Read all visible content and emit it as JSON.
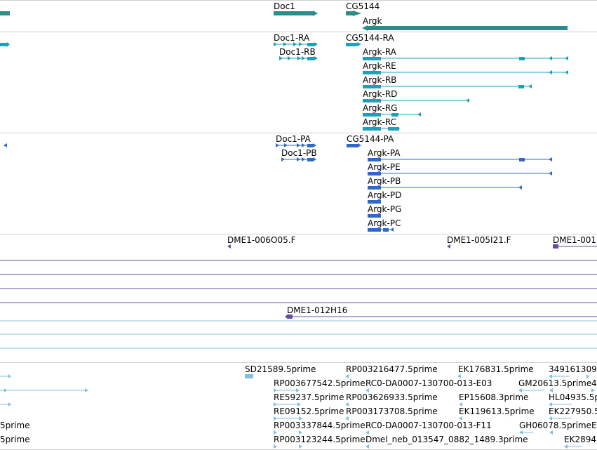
{
  "colors": {
    "gene": "#2e8b8b",
    "transcript": "#1ea0b8",
    "protein": "#2f68c8",
    "clone": "#6a4c9c",
    "est": "#7fbfe0",
    "divider": "#cfcfcf",
    "bg": "#ffffff"
  },
  "genes": {
    "doc1": "Doc1",
    "cg5144": "CG5144",
    "argk": "Argk"
  },
  "transcripts": {
    "doc1_ra": "Doc1-RA",
    "doc1_rb": "Doc1-RB",
    "cg5144_ra": "CG5144-RA",
    "argk_ra": "Argk-RA",
    "argk_re": "Argk-RE",
    "argk_rb": "Argk-RB",
    "argk_rd": "Argk-RD",
    "argk_rg": "Argk-RG",
    "argk_rc": "Argk-RC"
  },
  "proteins": {
    "doc1_pa": "Doc1-PA",
    "doc1_pb": "Doc1-PB",
    "cg5144_pa": "CG5144-PA",
    "argk_pa": "Argk-PA",
    "argk_pe": "Argk-PE",
    "argk_pb": "Argk-PB",
    "argk_pd": "Argk-PD",
    "argk_pg": "Argk-PG",
    "argk_pc": "Argk-PC"
  },
  "clones": {
    "c1": "DME1-006O05.F",
    "c2": "DME1-005I21.F",
    "c3": "DME1-001",
    "c4": "DME1-012H16"
  },
  "ests": {
    "r0a": "SD21589.5prime",
    "r0b": "RP003216477.5prime",
    "r0c": "EK176831.5prime",
    "r0d": "349161309",
    "r1a": "RP003677542.5prime",
    "r1b": "RC0-DA0007-130700-013-E03",
    "r1c": "GM20613.5prime",
    "r1d": "4",
    "r2a": "RE59237.5prime",
    "r2b": "RP003626933.5prime",
    "r2c": "EP15608.3prime",
    "r2d": "HL04935.5prime",
    "r3a": "RE09152.5prime",
    "r3b": "RP003173708.5prime",
    "r3c": "EK119613.5prime",
    "r3d": "EK227950.5",
    "r4a": "5prime",
    "r4b": "RP003337844.5prime",
    "r4c": "RC0-DA0007-130700-013-F11",
    "r4d": "GH06078.5prime",
    "r4e": "E",
    "r5a": "5prime",
    "r5b": "RP003123244.5prime",
    "r5c": "Dmel_neb_013547_0882_1489.3prime",
    "r5d": "EK2894"
  }
}
